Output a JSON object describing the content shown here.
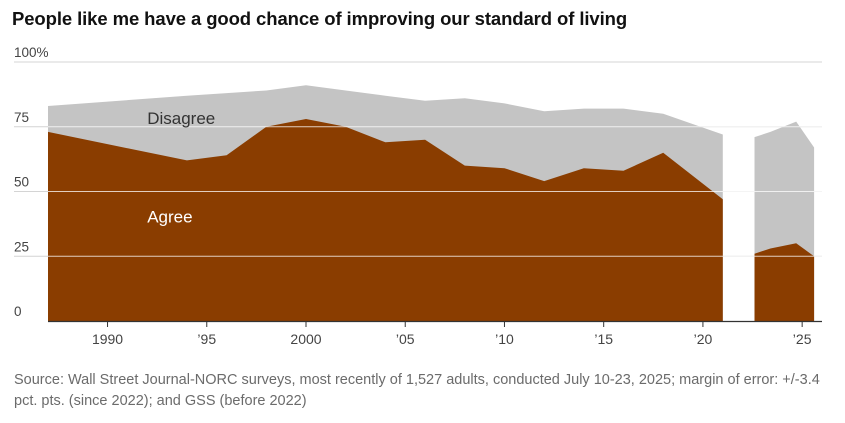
{
  "title": "People like me have a good chance of improving our standard of living",
  "source": "Source: Wall Street Journal-NORC surveys, most recently of 1,527 adults, conducted July 10-23, 2025; margin of error: +/-3.4 pct. pts. (since 2022); and GSS (before 2022)",
  "colors": {
    "agree": "#8a3d00",
    "disagree": "#c4c4c4",
    "grid": "#d4d4d4",
    "axis": "#333333",
    "tick_text": "#444444",
    "area_label_disagree": "#333333",
    "area_label_agree": "#ffffff"
  },
  "chart_data": {
    "type": "area",
    "stacked": true,
    "x_type": "year",
    "xlim": [
      1987,
      2026
    ],
    "ylim": [
      0,
      100
    ],
    "grid": true,
    "y_ticks": [
      0,
      25,
      50,
      75,
      100
    ],
    "y_tick_labels": [
      "0",
      "25",
      "50",
      "75",
      "100%"
    ],
    "x_ticks": [
      1990,
      1995,
      2000,
      2005,
      2010,
      2015,
      2020,
      2025
    ],
    "x_tick_labels": [
      "1990",
      "’95",
      "2000",
      "’05",
      "’10",
      "’15",
      "’20",
      "’25"
    ],
    "series": [
      {
        "name": "Agree",
        "segments": [
          [
            [
              1987,
              73
            ],
            [
              1994,
              62
            ],
            [
              1996,
              64
            ],
            [
              1998,
              75
            ],
            [
              2000,
              78
            ],
            [
              2002,
              75
            ],
            [
              2004,
              69
            ],
            [
              2006,
              70
            ],
            [
              2008,
              60
            ],
            [
              2010,
              59
            ],
            [
              2012,
              54
            ],
            [
              2014,
              59
            ],
            [
              2016,
              58
            ],
            [
              2018,
              65
            ],
            [
              2021,
              47
            ]
          ],
          [
            [
              2022.6,
              26
            ],
            [
              2023.4,
              28
            ],
            [
              2024.7,
              30
            ],
            [
              2025.6,
              25
            ]
          ]
        ]
      },
      {
        "name": "Disagree",
        "segments": [
          [
            [
              1987,
              10
            ],
            [
              1994,
              25
            ],
            [
              1996,
              24
            ],
            [
              1998,
              14
            ],
            [
              2000,
              13
            ],
            [
              2002,
              14
            ],
            [
              2004,
              18
            ],
            [
              2006,
              15
            ],
            [
              2008,
              26
            ],
            [
              2010,
              25
            ],
            [
              2012,
              27
            ],
            [
              2014,
              23
            ],
            [
              2016,
              24
            ],
            [
              2018,
              15
            ],
            [
              2021,
              25
            ]
          ],
          [
            [
              2022.6,
              45
            ],
            [
              2023.4,
              45
            ],
            [
              2024.7,
              47
            ],
            [
              2025.6,
              42
            ]
          ]
        ]
      }
    ],
    "area_labels": [
      {
        "text": "Disagree",
        "x": 1992,
        "y": 76
      },
      {
        "text": "Agree",
        "x": 1992,
        "y": 38
      }
    ]
  }
}
